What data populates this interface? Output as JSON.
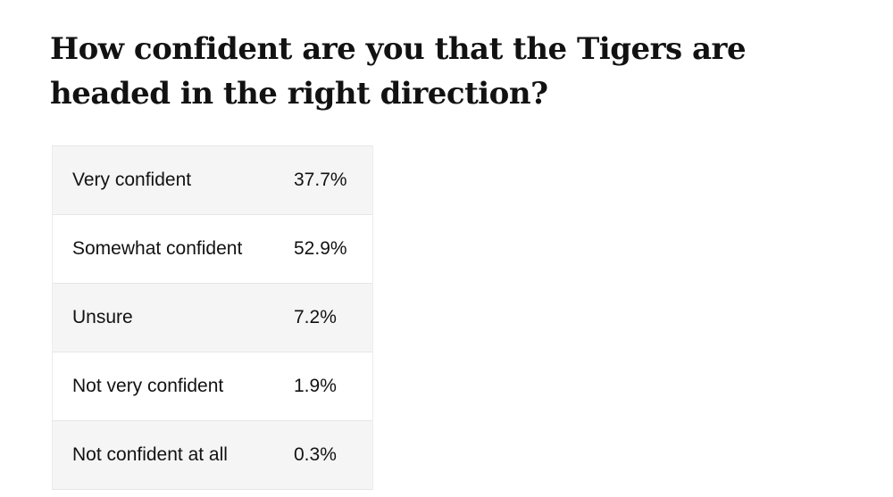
{
  "chart_data": {
    "type": "table",
    "title": "How confident are you that the Tigers are headed in the right direction?",
    "rows": [
      {
        "label": "Very confident",
        "value": "37.7%"
      },
      {
        "label": "Somewhat confident",
        "value": "52.9%"
      },
      {
        "label": "Unsure",
        "value": "7.2%"
      },
      {
        "label": "Not very confident",
        "value": "1.9%"
      },
      {
        "label": "Not confident at all",
        "value": "0.3%"
      }
    ]
  }
}
